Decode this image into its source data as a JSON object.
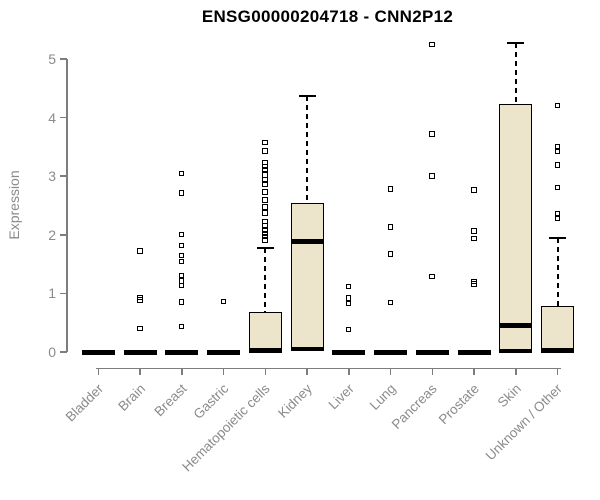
{
  "title": "ENSG00000204718 - CNN2P12",
  "colors": {
    "box_fill": "#ECE5CB",
    "box_border": "#000000",
    "axis": "#7d7d7d",
    "axis_text": "#8b8b8b",
    "title_text": "#000000"
  },
  "chart_data": {
    "type": "boxplot",
    "title": "ENSG00000204718 - CNN2P12",
    "xlabel": "",
    "ylabel": "Expression",
    "ylim": [
      0,
      5.4
    ],
    "y_ticks": [
      0,
      1,
      2,
      3,
      4,
      5
    ],
    "grid": false,
    "legend": false,
    "categories": [
      "Bladder",
      "Brain",
      "Breast",
      "Gastric",
      "Hematopoietic cells",
      "Kidney",
      "Liver",
      "Lung",
      "Pancreas",
      "Prostate",
      "Skin",
      "Unknown / Other"
    ],
    "series": [
      {
        "name": "Bladder",
        "q1": 0,
        "median": 0,
        "q3": 0,
        "whisker_low": 0,
        "whisker_high": 0,
        "outliers": []
      },
      {
        "name": "Brain",
        "q1": 0,
        "median": 0,
        "q3": 0,
        "whisker_low": 0,
        "whisker_high": 0,
        "outliers": [
          1.72,
          0.93,
          0.88,
          0.4
        ]
      },
      {
        "name": "Breast",
        "q1": 0,
        "median": 0,
        "q3": 0,
        "whisker_low": 0,
        "whisker_high": 0,
        "outliers": [
          3.04,
          2.71,
          2.0,
          1.81,
          1.64,
          1.54,
          1.3,
          1.21,
          1.13,
          0.85,
          0.43
        ]
      },
      {
        "name": "Gastric",
        "q1": 0,
        "median": 0,
        "q3": 0,
        "whisker_low": 0,
        "whisker_high": 0,
        "outliers": [
          0.86
        ]
      },
      {
        "name": "Hematopoietic cells",
        "q1": 0,
        "median": 0.02,
        "q3": 0.68,
        "whisker_low": 0,
        "whisker_high": 1.77,
        "outliers": [
          3.57,
          3.43,
          3.23,
          3.16,
          3.11,
          3.02,
          2.94,
          2.85,
          2.73,
          2.59,
          2.47,
          2.37,
          2.22,
          2.15,
          2.08,
          2.02,
          1.97,
          1.91
        ]
      },
      {
        "name": "Kidney",
        "q1": 0.03,
        "median": 1.88,
        "q3": 2.54,
        "whisker_low": 0,
        "whisker_high": 4.37,
        "outliers": []
      },
      {
        "name": "Liver",
        "q1": 0,
        "median": 0,
        "q3": 0,
        "whisker_low": 0,
        "whisker_high": 0,
        "outliers": [
          1.11,
          0.92,
          0.82,
          0.38
        ]
      },
      {
        "name": "Lung",
        "q1": 0,
        "median": 0,
        "q3": 0,
        "whisker_low": 0,
        "whisker_high": 0,
        "outliers": [
          2.78,
          2.13,
          1.67,
          0.84
        ]
      },
      {
        "name": "Pancreas",
        "q1": 0,
        "median": 0,
        "q3": 0,
        "whisker_low": 0,
        "whisker_high": 0,
        "outliers": [
          5.24,
          3.72,
          3.0,
          1.28
        ]
      },
      {
        "name": "Prostate",
        "q1": 0,
        "median": 0,
        "q3": 0,
        "whisker_low": 0,
        "whisker_high": 0,
        "outliers": [
          2.76,
          2.06,
          1.93,
          1.2,
          1.16
        ]
      },
      {
        "name": "Skin",
        "q1": 0,
        "median": 0.46,
        "q3": 4.23,
        "whisker_low": 0,
        "whisker_high": 5.27,
        "outliers": []
      },
      {
        "name": "Unknown / Other",
        "q1": 0,
        "median": 0.03,
        "q3": 0.78,
        "whisker_low": 0,
        "whisker_high": 1.95,
        "outliers": [
          4.2,
          3.5,
          3.42,
          3.19,
          2.8,
          2.36,
          2.27
        ]
      }
    ]
  }
}
